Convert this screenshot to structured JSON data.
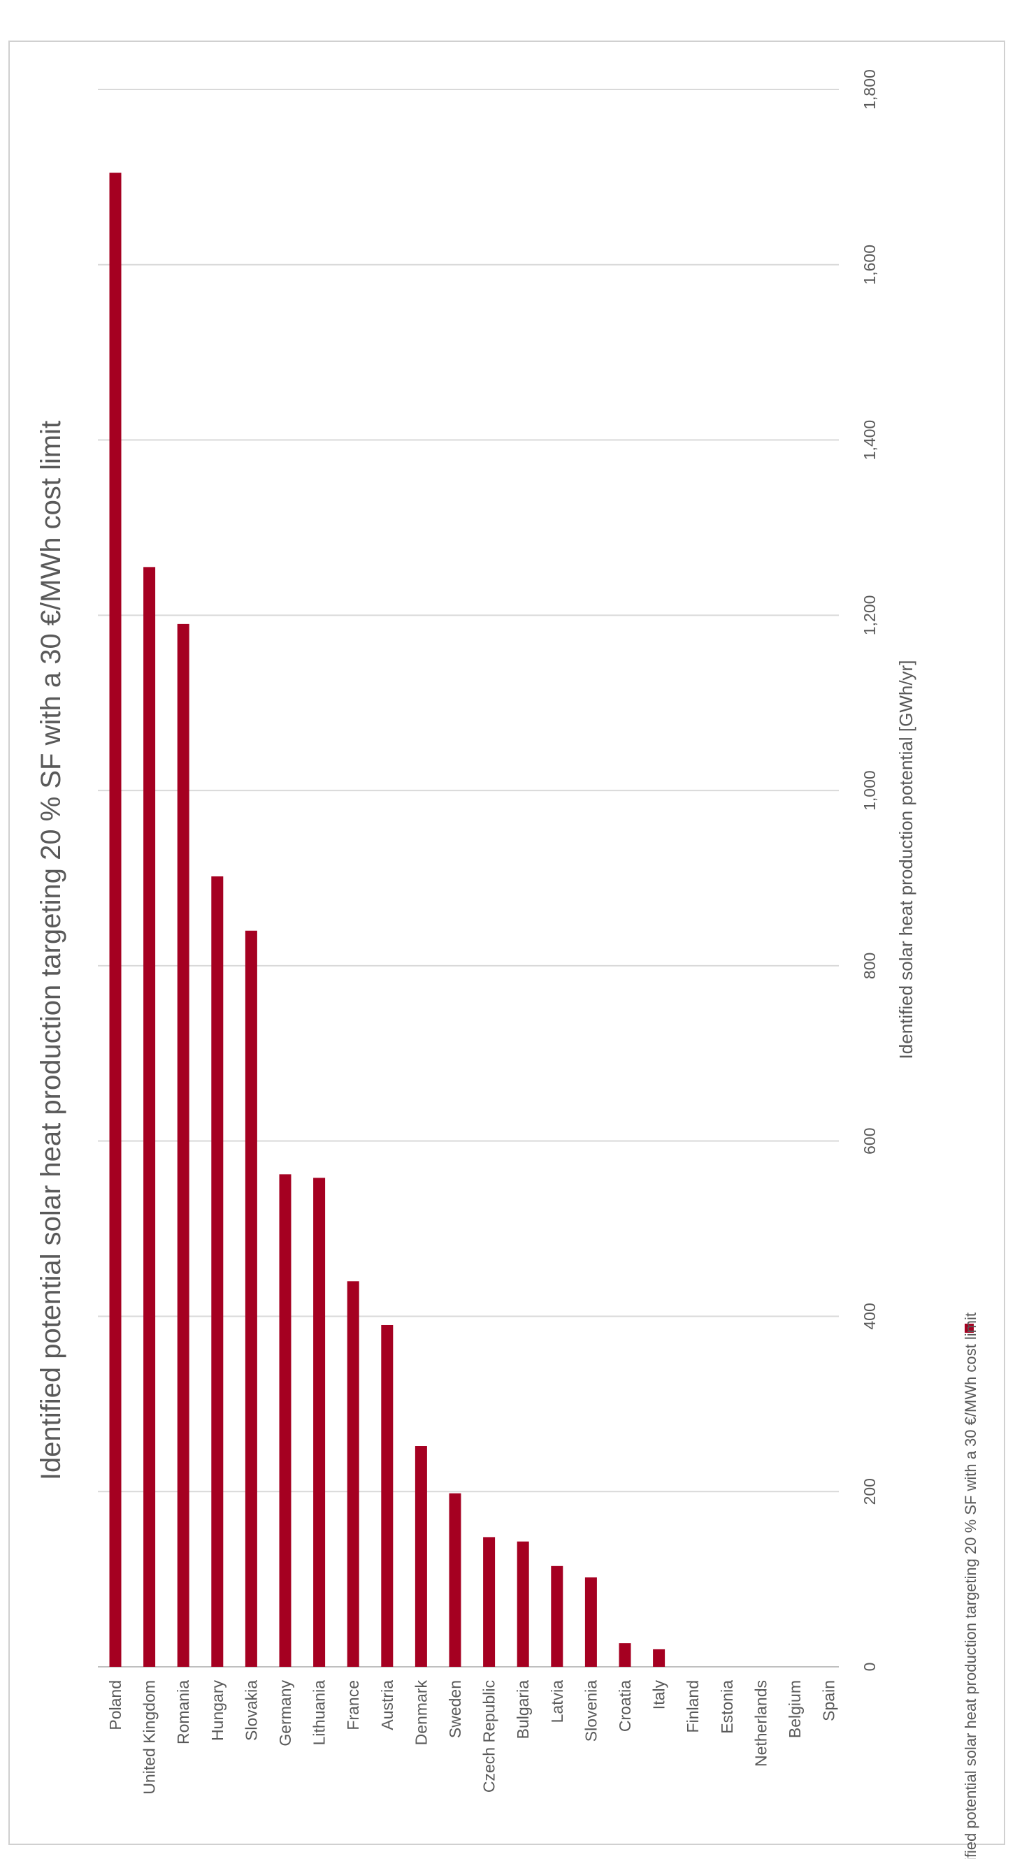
{
  "chart_data": {
    "type": "bar",
    "orientation": "horizontal",
    "title": "Identified potential solar heat production targeting 20 % SF with a 30 €/MWh cost limit",
    "xlabel": "Identified solar heat production potential [GWh/yr]",
    "ylabel": "",
    "xlim": [
      0,
      1800
    ],
    "x_ticks": [
      "0",
      "200",
      "400",
      "600",
      "800",
      "1,000",
      "1,200",
      "1,400",
      "1,600",
      "1,800"
    ],
    "grid": true,
    "legend_position": "bottom",
    "categories": [
      "Poland",
      "United Kingdom",
      "Romania",
      "Hungary",
      "Slovakia",
      "Germany",
      "Lithuania",
      "France",
      "Austria",
      "Denmark",
      "Sweden",
      "Czech Republic",
      "Bulgaria",
      "Latvia",
      "Slovenia",
      "Croatia",
      "Italy",
      "Finland",
      "Estonia",
      "Netherlands",
      "Belgium",
      "Spain"
    ],
    "series": [
      {
        "name": "Identified potential solar heat production targeting 20 % SF with a 30 €/MWh cost limit",
        "color": "#a50021",
        "values": [
          1705,
          1255,
          1190,
          902,
          840,
          562,
          558,
          440,
          390,
          252,
          198,
          148,
          143,
          115,
          102,
          27,
          20,
          0,
          0,
          0,
          0,
          0
        ]
      }
    ]
  }
}
